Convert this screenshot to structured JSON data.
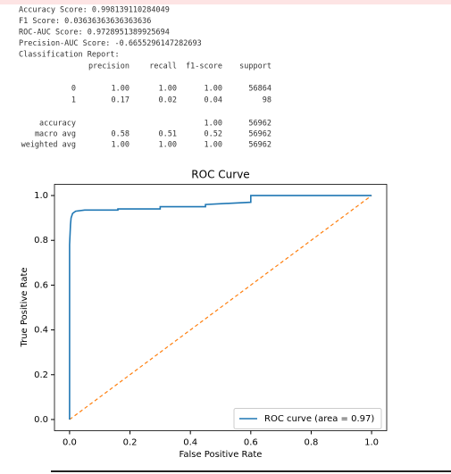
{
  "output": {
    "lines": [
      "Accuracy Score: 0.998139110284049",
      "F1 Score: 0.03636363636363636",
      "ROC-AUC Score: 0.9728951389925694",
      "Precision-AUC Score: -0.6655296147282693",
      "Classification Report:"
    ]
  },
  "report": {
    "headers": [
      "precision",
      "recall",
      "f1-score",
      "support"
    ],
    "rows": [
      {
        "label": "0",
        "precision": "1.00",
        "recall": "1.00",
        "f1-score": "1.00",
        "support": "56864"
      },
      {
        "label": "1",
        "precision": "0.17",
        "recall": "0.02",
        "f1-score": "0.04",
        "support": "98"
      },
      {
        "label": "accuracy",
        "f1-score": "1.00",
        "support": "56962"
      },
      {
        "label": "macro avg",
        "precision": "0.58",
        "recall": "0.51",
        "f1-score": "0.52",
        "support": "56962"
      },
      {
        "label": "weighted avg",
        "precision": "1.00",
        "recall": "1.00",
        "f1-score": "1.00",
        "support": "56962"
      }
    ]
  },
  "chart_data": {
    "type": "line",
    "title": "ROC Curve",
    "x_label": "False Positive Rate",
    "y_label": "True Positive Rate",
    "xlim": [
      -0.05,
      1.05
    ],
    "ylim": [
      -0.05,
      1.05
    ],
    "xticks": [
      {
        "value": 0,
        "label": "0.0"
      },
      {
        "value": 0.2,
        "label": "0.2"
      },
      {
        "value": 0.4,
        "label": "0.4"
      },
      {
        "value": 0.6,
        "label": "0.6"
      },
      {
        "value": 0.8,
        "label": "0.8"
      },
      {
        "value": 1,
        "label": "1.0"
      }
    ],
    "yticks": [
      {
        "value": 0,
        "label": "0.0"
      },
      {
        "value": 0.2,
        "label": "0.2"
      },
      {
        "value": 0.4,
        "label": "0.4"
      },
      {
        "value": 0.6,
        "label": "0.6"
      },
      {
        "value": 0.8,
        "label": "0.8"
      },
      {
        "value": 1,
        "label": "1.0"
      }
    ],
    "legend": "lower right",
    "series": [
      {
        "name": "ROC curve (area = 0.97)",
        "color": "#1f77b4",
        "x": [
          0,
          0,
          0.003,
          0.005,
          0.01,
          0.02,
          0.05,
          0.16,
          0.16,
          0.3,
          0.3,
          0.45,
          0.45,
          0.6,
          0.6,
          1
        ],
        "values": [
          0,
          0.78,
          0.87,
          0.9,
          0.92,
          0.93,
          0.935,
          0.935,
          0.94,
          0.94,
          0.95,
          0.95,
          0.96,
          0.97,
          1,
          1
        ]
      },
      {
        "color": "#ff7f0e",
        "dashed": true,
        "x": [
          0,
          1
        ],
        "values": [
          0,
          1
        ]
      }
    ]
  }
}
